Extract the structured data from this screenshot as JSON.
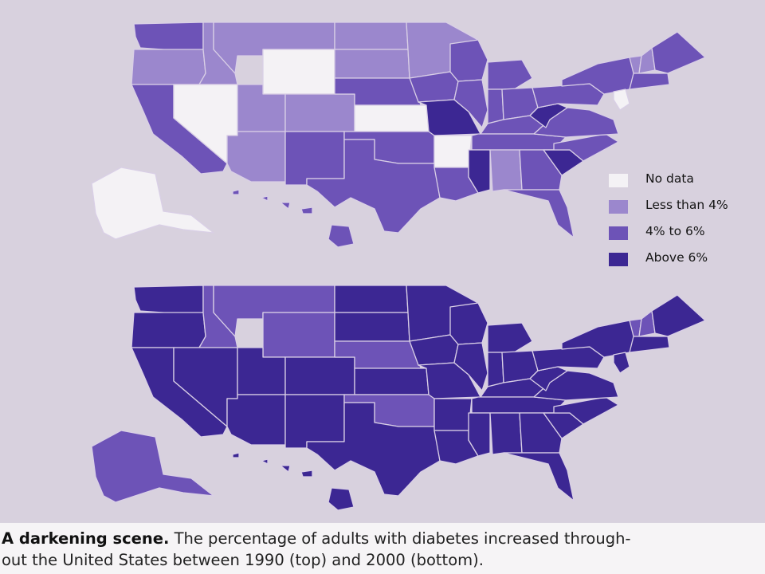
{
  "maps": [
    {
      "year": "1990",
      "position_label": "top"
    },
    {
      "year": "2000",
      "position_label": "bottom"
    }
  ],
  "legend": [
    {
      "label": "No data",
      "color": "#f4f2f5",
      "class": "nodata"
    },
    {
      "label": "Less than 4%",
      "color": "#9b87cd",
      "class": "low"
    },
    {
      "label": "4% to 6%",
      "color": "#6d53b7",
      "class": "mid"
    },
    {
      "label": "Above 6%",
      "color": "#3c2793",
      "class": "high"
    }
  ],
  "caption": {
    "title": "A darkening scene.",
    "line1": "The percentage of adults with diabetes increased through-",
    "line2": "out the United States between 1990 (top) and 2000 (bottom)."
  },
  "map_1990": {
    "WA": "mid",
    "OR": "low",
    "CA": "mid",
    "ID": "low",
    "NV": "nodata",
    "UT": "low",
    "AZ": "low",
    "MT": "low",
    "WY": "nodata",
    "CO": "low",
    "NM": "mid",
    "ND": "low",
    "SD": "low",
    "NE": "mid",
    "KS": "nodata",
    "OK": "mid",
    "TX": "mid",
    "MN": "low",
    "IA": "mid",
    "MO": "high",
    "AR": "nodata",
    "LA": "mid",
    "WI": "mid",
    "IL": "mid",
    "MS": "high",
    "MI": "mid",
    "IN": "mid",
    "OH": "mid",
    "KY": "mid",
    "TN": "mid",
    "AL": "low",
    "GA": "mid",
    "FL": "mid",
    "SC": "high",
    "NC": "mid",
    "VA": "mid",
    "WV": "high",
    "PA": "mid",
    "NY": "mid",
    "NJ": "nodata",
    "VT": "low",
    "NH": "low",
    "ME": "mid",
    "MA": "mid",
    "AK": "nodata",
    "HI": "mid"
  },
  "map_2000": {
    "WA": "high",
    "OR": "high",
    "CA": "high",
    "ID": "mid",
    "NV": "high",
    "UT": "high",
    "AZ": "high",
    "MT": "mid",
    "WY": "mid",
    "CO": "high",
    "NM": "high",
    "ND": "high",
    "SD": "high",
    "NE": "mid",
    "KS": "high",
    "OK": "mid",
    "TX": "high",
    "MN": "high",
    "IA": "high",
    "MO": "high",
    "AR": "high",
    "LA": "high",
    "WI": "high",
    "IL": "high",
    "MS": "high",
    "MI": "high",
    "IN": "high",
    "OH": "high",
    "KY": "high",
    "TN": "high",
    "AL": "high",
    "GA": "high",
    "FL": "high",
    "SC": "high",
    "NC": "high",
    "VA": "high",
    "WV": "high",
    "PA": "high",
    "NY": "high",
    "NJ": "high",
    "VT": "mid",
    "NH": "mid",
    "ME": "high",
    "MA": "high",
    "AK": "mid",
    "HI": "high"
  }
}
